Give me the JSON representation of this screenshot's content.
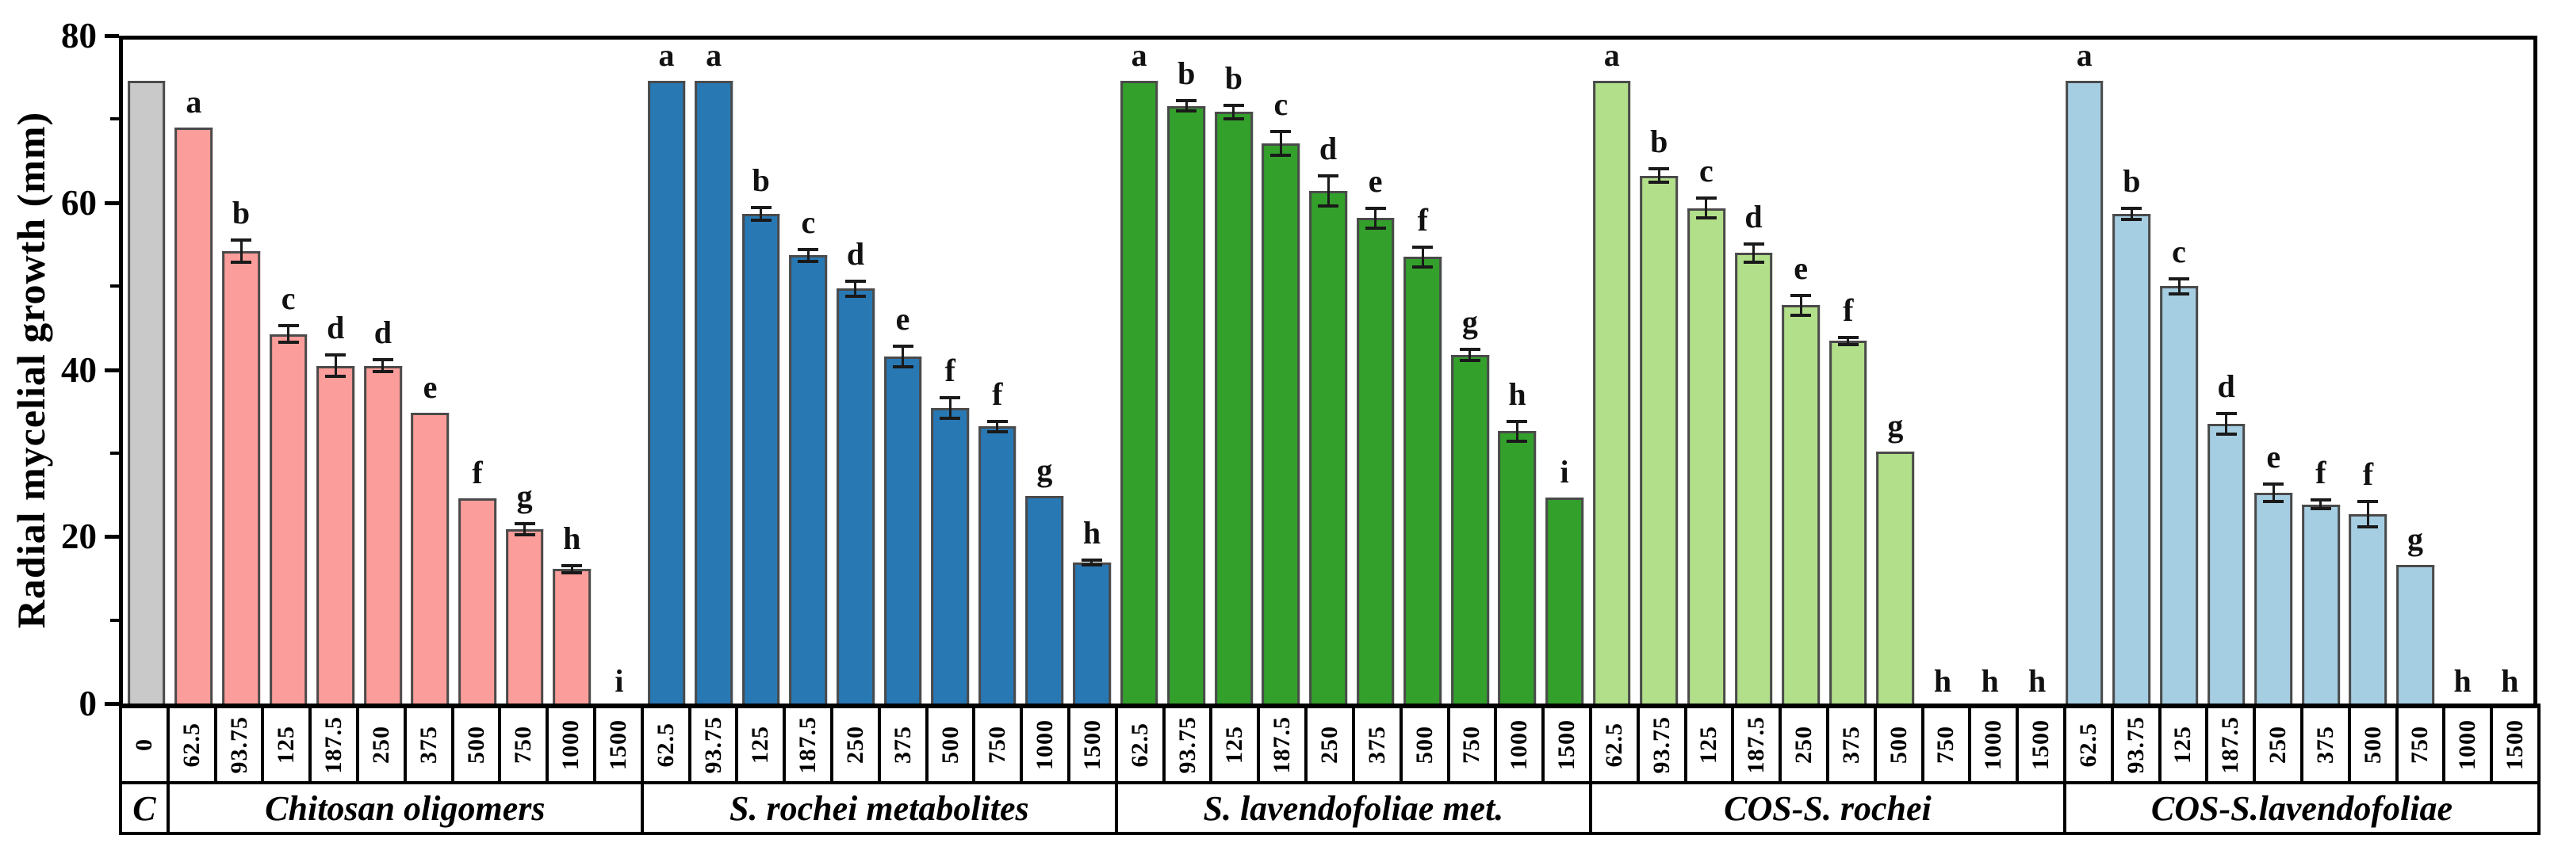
{
  "chart_data": {
    "type": "bar",
    "title": "",
    "xlabel": "",
    "ylabel": "Radial mycelial growth (mm)",
    "ylim": [
      0,
      80
    ],
    "y_major_ticks": [
      0,
      20,
      40,
      60,
      80
    ],
    "y_minor_ticks": [
      10,
      30,
      50,
      70
    ],
    "grid": "off",
    "legend": "none",
    "bar_border_color": "#4a4a4a",
    "error_bar_color": "#1a1a1a",
    "concentrations": [
      "62.5",
      "93.75",
      "125",
      "187.5",
      "250",
      "375",
      "500",
      "750",
      "1000",
      "1500"
    ],
    "control": {
      "group_label": "C",
      "x_label": "0",
      "value": 75,
      "error": 0,
      "letter": "",
      "color": "#C9C9C9"
    },
    "groups": [
      {
        "name": "Chitosan oligomers",
        "color": "#FB9D9A",
        "values": [
          69.4,
          54.5,
          44.5,
          40.7,
          40.7,
          35.0,
          24.7,
          21.0,
          16.2,
          0
        ],
        "errors": [
          0,
          1.5,
          1.2,
          1.5,
          0.9,
          0,
          0,
          0.9,
          0.6,
          0
        ],
        "letters": [
          "a",
          "b",
          "c",
          "d",
          "d",
          "e",
          "f",
          "g",
          "h",
          "i"
        ]
      },
      {
        "name": "S. rochei metabolites",
        "color": "#2878B4",
        "values": [
          75,
          75,
          59.0,
          54.0,
          50.0,
          41.8,
          35.6,
          33.4,
          25.0,
          17.0
        ],
        "errors": [
          0,
          0,
          1.0,
          0.9,
          1.1,
          1.4,
          1.4,
          0.8,
          0,
          0.5
        ],
        "letters": [
          "a",
          "a",
          "b",
          "c",
          "d",
          "e",
          "f",
          "f",
          "g",
          "h"
        ]
      },
      {
        "name": "S. lavendofoliae met.",
        "color": "#33A02C",
        "values": [
          75,
          72.0,
          71.3,
          67.5,
          61.8,
          58.5,
          53.8,
          42.0,
          32.8,
          24.8
        ],
        "errors": [
          0,
          0.8,
          1.0,
          1.6,
          2.0,
          1.4,
          1.4,
          0.9,
          1.4,
          0
        ],
        "letters": [
          "a",
          "b",
          "b",
          "c",
          "d",
          "e",
          "f",
          "g",
          "h",
          "i"
        ]
      },
      {
        "name": "COS-S. rochei",
        "color": "#B2DF8A",
        "values": [
          75,
          63.6,
          59.7,
          54.3,
          48.0,
          43.7,
          30.4,
          0,
          0,
          0
        ],
        "errors": [
          0,
          1.0,
          1.4,
          1.3,
          1.4,
          0.6,
          0,
          0,
          0,
          0
        ],
        "letters": [
          "a",
          "b",
          "c",
          "d",
          "e",
          "f",
          "g",
          "h",
          "h",
          "h"
        ]
      },
      {
        "name": "COS-S.lavendofoliae",
        "color": "#A6CEE3",
        "values": [
          75,
          59.0,
          50.3,
          33.7,
          25.4,
          24.0,
          22.8,
          16.7,
          0,
          0
        ],
        "errors": [
          0,
          0.9,
          1.1,
          1.4,
          1.2,
          0.7,
          1.7,
          0,
          0,
          0
        ],
        "letters": [
          "a",
          "b",
          "c",
          "d",
          "e",
          "f",
          "f",
          "g",
          "h",
          "h"
        ]
      }
    ]
  }
}
